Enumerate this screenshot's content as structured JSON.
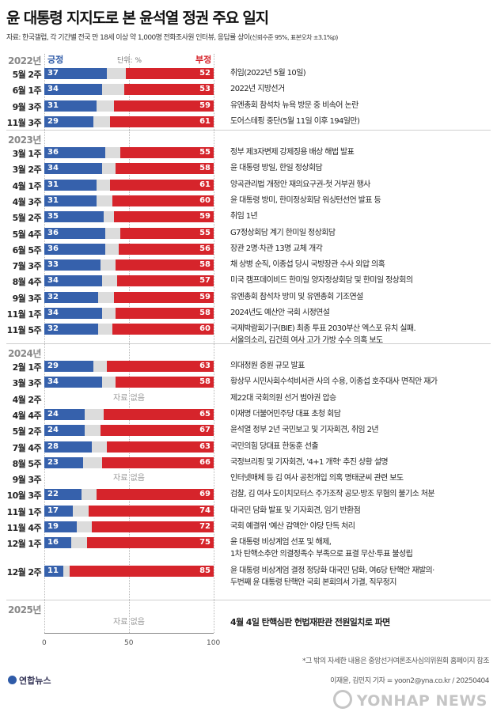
{
  "title": "윤 대통령 지지도로 본 윤석열 정권 주요 일지",
  "subtitle": "자료: 한국갤럽, 각 기간별 전국 만 18세 이상 약 1,000명 전화조사원 인터뷰, 응답률 상이",
  "subtitle_note": "(신뢰수준 95%, 표본오차 ±3.1%p)",
  "legend": {
    "positive": "긍정",
    "negative": "부정",
    "unit": "단위: %"
  },
  "no_data_label": "자료 없음",
  "footnote": "*그 밖의 자세한 내용은 중앙선거여론조사심의위원회 홈페이지 참조",
  "credit": "이재윤, 김민지 기자 = yoon2@yna.co.kr / 20250404",
  "logo": "연합뉴스",
  "watermark": "YONHAP NEWS",
  "colors": {
    "positive": "#3661ac",
    "negative": "#d6242b",
    "neutral": "#dcdcdc"
  },
  "chart_data": {
    "type": "bar",
    "xlim": [
      0,
      100
    ],
    "x_ticks": [
      0,
      50,
      100
    ],
    "series_names": [
      "긍정",
      "부정"
    ],
    "groups": [
      {
        "year": "2022년",
        "rows": [
          {
            "period": "5월 2주",
            "positive": 37,
            "negative": 52,
            "event": [
              "취임(2022년 5월 10일)"
            ]
          },
          {
            "period": "6월 1주",
            "positive": 34,
            "negative": 53,
            "event": [
              "2022년 지방선거"
            ]
          },
          {
            "period": "9월 3주",
            "positive": 31,
            "negative": 59,
            "event": [
              "유엔총회 참석차 뉴욕 방문 중 비속어 논란"
            ]
          },
          {
            "period": "11월 3주",
            "positive": 29,
            "negative": 61,
            "event": [
              "도어스테핑 중단(5월 11일 이후 194일만)"
            ]
          }
        ]
      },
      {
        "year": "2023년",
        "rows": [
          {
            "period": "3월 1주",
            "positive": 36,
            "negative": 55,
            "event": [
              "정부 제3자변제 강제징용 배상 해법 발표"
            ]
          },
          {
            "period": "3월 2주",
            "positive": 34,
            "negative": 58,
            "event": [
              "윤 대통령 방일, 한일 정상회담"
            ]
          },
          {
            "period": "4월 1주",
            "positive": 31,
            "negative": 61,
            "event": [
              "양곡관리법 개정안 재의요구권-첫 거부권 행사"
            ]
          },
          {
            "period": "4월 3주",
            "positive": 31,
            "negative": 60,
            "event": [
              "윤 대통령 방미, 한미정상회담 워싱턴선언 발표 등"
            ]
          },
          {
            "period": "5월 2주",
            "positive": 35,
            "negative": 59,
            "event": [
              "취임 1년"
            ]
          },
          {
            "period": "5월 4주",
            "positive": 36,
            "negative": 55,
            "event": [
              "G7정상회담 계기 한미일 정상회담"
            ]
          },
          {
            "period": "6월 5주",
            "positive": 36,
            "negative": 56,
            "event": [
              "장관 2명·차관 13명 교체 개각"
            ]
          },
          {
            "period": "7월 3주",
            "positive": 33,
            "negative": 58,
            "event": [
              "채 상병 순직, 이종섭 당시 국방장관 수사 외압 의혹"
            ]
          },
          {
            "period": "8월 4주",
            "positive": 34,
            "negative": 57,
            "event": [
              "미국 캠프데이비드 한미일 양자정상회담 및 한미일 정상회의"
            ]
          },
          {
            "period": "9월 3주",
            "positive": 32,
            "negative": 59,
            "event": [
              "유엔총회 참석차 방미 및 유엔총회 기조연설"
            ]
          },
          {
            "period": "11월 1주",
            "positive": 34,
            "negative": 58,
            "event": [
              "2024년도 예산안 국회 시정연설"
            ]
          },
          {
            "period": "11월 5주",
            "positive": 32,
            "negative": 60,
            "event": [
              "국제박람회기구(BIE) 최종 투표 2030부산 엑스포 유치 실패.",
              "서울의소리, 김건희 여사 고가 가방 수수 의혹 보도"
            ]
          }
        ]
      },
      {
        "year": "2024년",
        "rows": [
          {
            "period": "2월 1주",
            "positive": 29,
            "negative": 63,
            "event": [
              "의대정원 증원 규모 발표"
            ]
          },
          {
            "period": "3월 3주",
            "positive": 34,
            "negative": 58,
            "event": [
              "황상무 시민사회수석비서관 사의 수용, 이종섭 호주대사 면직안 재가"
            ]
          },
          {
            "period": "4월 2주",
            "positive": null,
            "negative": null,
            "event": [
              "제22대 국회의원 선거 범야권 압승"
            ]
          },
          {
            "period": "4월 4주",
            "positive": 24,
            "negative": 65,
            "event": [
              "이재명 더불어민주당 대표 초청 회담"
            ]
          },
          {
            "period": "5월 2주",
            "positive": 24,
            "negative": 67,
            "event": [
              "윤석열 정부 2년 국민보고 및 기자회견, 취임 2년"
            ]
          },
          {
            "period": "7월 4주",
            "positive": 28,
            "negative": 63,
            "event": [
              "국민의힘 당대표 한동훈 선출"
            ]
          },
          {
            "period": "8월 5주",
            "positive": 23,
            "negative": 66,
            "event": [
              "국정브리핑 및 기자회견, '4+1 개혁' 추진 상황 설명"
            ]
          },
          {
            "period": "9월 3주",
            "positive": null,
            "negative": null,
            "event": [
              "인터넷매체 등 김 여사 공천개입 의혹 명태균씨 관련 보도"
            ]
          },
          {
            "period": "10월 3주",
            "positive": 22,
            "negative": 69,
            "event": [
              "검찰, 김 여사 도이치모터스 주가조작 공모·방조 무혐의 불기소 처분"
            ]
          },
          {
            "period": "11월 1주",
            "positive": 17,
            "negative": 74,
            "event": [
              "대국민 담화 발표 및 기자회견, 임기 반환점"
            ]
          },
          {
            "period": "11월 4주",
            "positive": 19,
            "negative": 72,
            "event": [
              "국회 예결위 '예산 감액안' 야당 단독 처리"
            ]
          },
          {
            "period": "12월 1주",
            "positive": 16,
            "negative": 75,
            "event": [
              "윤 대통령 비상계엄 선포 및 해제,",
              "1차 탄핵소추안 의결정족수 부족으로 표결 무산·투표 불성립"
            ]
          },
          {
            "period": "12월 2주",
            "positive": 11,
            "negative": 85,
            "event": [
              "윤 대통령 비상계엄 결정 정당화 대국민 담화, 여6당 탄핵안 재발의·",
              "두번째 윤 대통령 탄핵안 국회 본회의서 가결, 직무정지"
            ]
          }
        ]
      },
      {
        "year": "2025년",
        "rows": [
          {
            "period": "",
            "positive": null,
            "negative": null,
            "event": [
              "4월 4일 탄핵심판 헌법재판관 전원일치로 파면"
            ],
            "strong": true
          }
        ]
      }
    ]
  }
}
